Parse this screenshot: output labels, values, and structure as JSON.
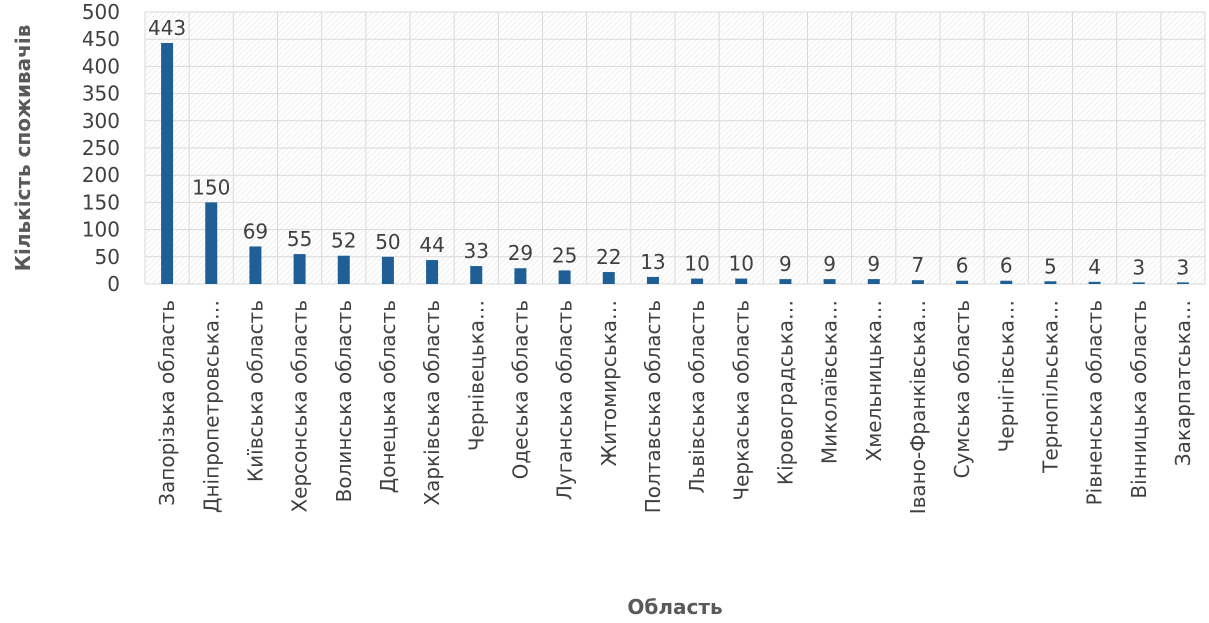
{
  "chart_data": {
    "type": "bar",
    "title": "",
    "xlabel": "Область",
    "ylabel": "Кількість споживачів",
    "ylim": [
      0,
      500
    ],
    "yticks": [
      0,
      50,
      100,
      150,
      200,
      250,
      300,
      350,
      400,
      450,
      500
    ],
    "grid": true,
    "categories": [
      "Запорізька область",
      "Дніпропетровська…",
      "Київська область",
      "Херсонська область",
      "Волинська область",
      "Донецька область",
      "Харківська область",
      "Чернівецька…",
      "Одеська область",
      "Луганська область",
      "Житомирська…",
      "Полтавська область",
      "Львівська область",
      "Черкаська область",
      "Кіровоградська…",
      "Миколаївська…",
      "Хмельницька…",
      "Івано-Франківська…",
      "Сумська область",
      "Чернігівська…",
      "Тернопільська…",
      "Рівненська область",
      "Вінницька область",
      "Закарпатська…"
    ],
    "values": [
      443,
      150,
      69,
      55,
      52,
      50,
      44,
      33,
      29,
      25,
      22,
      13,
      10,
      10,
      9,
      9,
      9,
      7,
      6,
      6,
      5,
      4,
      3,
      3
    ],
    "colors": {
      "bar": "#1f5f96",
      "text": "#404040",
      "axis_title": "#595959",
      "grid": "#d9d9d9"
    }
  }
}
